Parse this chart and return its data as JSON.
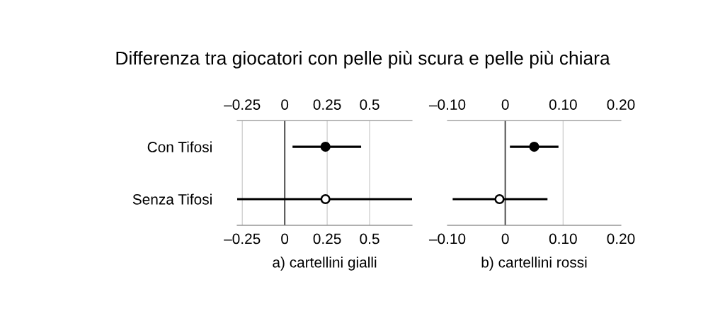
{
  "chart_data": [
    {
      "type": "scatter",
      "orientation": "horizontal",
      "title": "Differenza tra giocatori con pelle più scura e pelle più chiara",
      "xlabel": "a) cartellini gialli",
      "categories": [
        "Con Tifosi",
        "Senza Tifosi"
      ],
      "series": [
        {
          "color": "#000000",
          "colors": [
            "#000000",
            "#ffffff"
          ],
          "values": [
            0.24,
            0.24
          ],
          "errors": [
            [
              0.046,
              0.45
            ],
            [
              -0.28,
              0.75
            ]
          ]
        }
      ],
      "xlim": [
        -0.28,
        0.75
      ],
      "xticks": [
        {
          "value": -0.25,
          "label": "–0.25"
        },
        0,
        0.25,
        0.5
      ],
      "x2lim": [
        -0.28,
        0.75
      ],
      "x2ticks": [
        {
          "value": -0.25,
          "label": "–0.25"
        },
        0,
        0.25,
        0.5
      ],
      "ref_lines": [
        {
          "axis": "x",
          "value": 0,
          "color": "#555555"
        }
      ],
      "grid": "x",
      "marker": "circle"
    },
    {
      "type": "scatter",
      "orientation": "horizontal",
      "xlabel": "b) cartellini rossi",
      "categories": [
        null,
        null
      ],
      "series": [
        {
          "color": "#000000",
          "colors": [
            "#000000",
            "#ffffff"
          ],
          "values": [
            0.05,
            -0.01
          ],
          "errors": [
            [
              0.008,
              0.092
            ],
            [
              -0.091,
              0.073
            ]
          ]
        }
      ],
      "xlim": [
        -0.1,
        0.2
      ],
      "xticks": [
        {
          "value": -0.1,
          "label": "–0.10"
        },
        0,
        {
          "value": 0.1,
          "label": "0.10"
        },
        {
          "value": 0.2,
          "label": "0.20"
        }
      ],
      "x2lim": [
        -0.1,
        0.2
      ],
      "x2ticks": [
        {
          "value": -0.1,
          "label": "–0.10"
        },
        0,
        {
          "value": 0.1,
          "label": "0.10"
        },
        {
          "value": 0.2,
          "label": "0.20"
        }
      ],
      "ref_lines": [
        {
          "axis": "x",
          "value": 0,
          "color": "#555555"
        },
        {
          "axis": "x",
          "value": 0.1,
          "color": "#cccccc"
        }
      ],
      "marker": "circle",
      "tick_labels": "x"
    }
  ]
}
